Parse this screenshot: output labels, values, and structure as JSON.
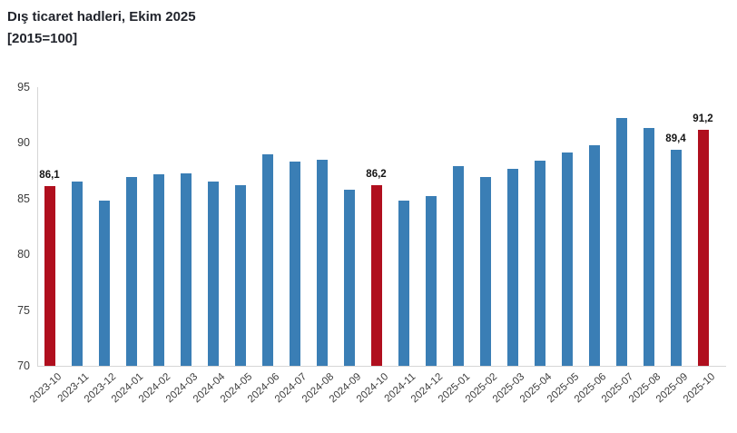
{
  "title": {
    "line1": "Dış ticaret hadleri, Ekim 2025",
    "line2": "[2015=100]"
  },
  "colors": {
    "bar_blue": "#3a7eb5",
    "bar_red": "#b00f1e",
    "axis_line": "#d6d6d6",
    "title_text": "#21242c",
    "tick_text": "#3c3c3c",
    "data_label_text": "#141414"
  },
  "chart_data": {
    "type": "bar",
    "title": "Dış ticaret hadleri, Ekim 2025 [2015=100]",
    "xlabel": "",
    "ylabel": "",
    "ylim": [
      70,
      95
    ],
    "yticks": [
      70,
      75,
      80,
      85,
      90,
      95
    ],
    "grid": false,
    "legend": false,
    "categories": [
      "2023-10",
      "2023-11",
      "2023-12",
      "2024-01",
      "2024-02",
      "2024-03",
      "2024-04",
      "2024-05",
      "2024-06",
      "2024-07",
      "2024-08",
      "2024-09",
      "2024-10",
      "2024-11",
      "2024-12",
      "2025-01",
      "2025-02",
      "2025-03",
      "2025-04",
      "2025-05",
      "2025-06",
      "2025-07",
      "2025-08",
      "2025-09",
      "2025-10"
    ],
    "values": [
      86.1,
      86.5,
      84.8,
      86.9,
      87.2,
      87.3,
      86.5,
      86.2,
      89.0,
      88.3,
      88.5,
      85.8,
      86.2,
      84.8,
      85.2,
      87.9,
      86.9,
      87.7,
      88.4,
      89.1,
      89.8,
      92.2,
      91.3,
      89.4,
      91.2
    ],
    "highlight_indexes": [
      0,
      12,
      24
    ],
    "data_labels": [
      {
        "index": 0,
        "text": "86,1"
      },
      {
        "index": 12,
        "text": "86,2"
      },
      {
        "index": 23,
        "text": "89,4"
      },
      {
        "index": 24,
        "text": "91,2"
      }
    ]
  }
}
